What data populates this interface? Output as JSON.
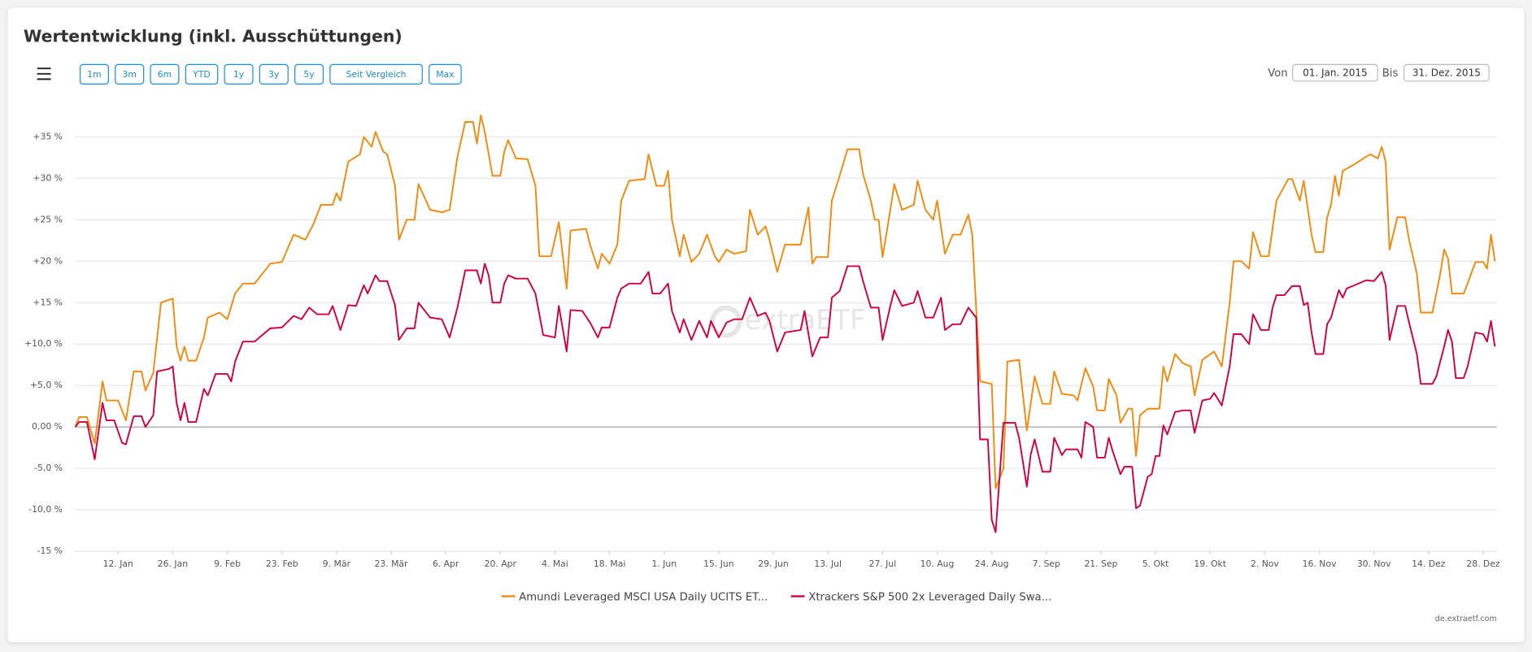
{
  "chart_data": {
    "type": "line",
    "title": "Wertentwicklung (inkl. Ausschüttungen)",
    "range_buttons": [
      "1m",
      "3m",
      "6m",
      "YTD",
      "1y",
      "3y",
      "5y",
      "Seit Vergleich",
      "Max"
    ],
    "date_range": {
      "from_label": "Von",
      "from": "01. Jan. 2015",
      "to_label": "Bis",
      "to": "31. Dez. 2015"
    },
    "watermark": "extraETF",
    "credits": "de.extraetf.com",
    "xlim": [
      1,
      365
    ],
    "xticks": [
      {
        "value": 12,
        "label": "12. Jan"
      },
      {
        "value": 26,
        "label": "26. Jan"
      },
      {
        "value": 40,
        "label": "9. Feb"
      },
      {
        "value": 54,
        "label": "23. Feb"
      },
      {
        "value": 68,
        "label": "9. Mär"
      },
      {
        "value": 82,
        "label": "23. Mär"
      },
      {
        "value": 96,
        "label": "6. Apr"
      },
      {
        "value": 110,
        "label": "20. Apr"
      },
      {
        "value": 124,
        "label": "4. Mai"
      },
      {
        "value": 138,
        "label": "18. Mai"
      },
      {
        "value": 152,
        "label": "1. Jun"
      },
      {
        "value": 166,
        "label": "15. Jun"
      },
      {
        "value": 180,
        "label": "29. Jun"
      },
      {
        "value": 194,
        "label": "13. Jul"
      },
      {
        "value": 208,
        "label": "27. Jul"
      },
      {
        "value": 222,
        "label": "10. Aug"
      },
      {
        "value": 236,
        "label": "24. Aug"
      },
      {
        "value": 250,
        "label": "7. Sep"
      },
      {
        "value": 264,
        "label": "21. Sep"
      },
      {
        "value": 278,
        "label": "5. Okt"
      },
      {
        "value": 292,
        "label": "19. Okt"
      },
      {
        "value": 306,
        "label": "2. Nov"
      },
      {
        "value": 320,
        "label": "16. Nov"
      },
      {
        "value": 334,
        "label": "30. Nov"
      },
      {
        "value": 348,
        "label": "14. Dez"
      },
      {
        "value": 362,
        "label": "28. Dez"
      }
    ],
    "ylim": [
      -15,
      40
    ],
    "yticks": [
      {
        "value": 35,
        "label": "+35 %"
      },
      {
        "value": 30,
        "label": "+30 %"
      },
      {
        "value": 25,
        "label": "+25 %"
      },
      {
        "value": 20,
        "label": "+20 %"
      },
      {
        "value": 15,
        "label": "+15 %"
      },
      {
        "value": 10,
        "label": "+10,0 %"
      },
      {
        "value": 5,
        "label": "+5,0 %"
      },
      {
        "value": 0,
        "label": "0,00 %"
      },
      {
        "value": -5,
        "label": "-5,0 %"
      },
      {
        "value": -10,
        "label": "-10,0 %"
      },
      {
        "value": -15,
        "label": "-15 %"
      }
    ],
    "grid": true,
    "legend": "bottom",
    "series": [
      {
        "name": "Amundi Leveraged MSCI USA Daily UCITS ET...",
        "color": "#f28a0e",
        "x": [
          1,
          2,
          4,
          6,
          8,
          9,
          12,
          13,
          14,
          16,
          18,
          19,
          21,
          23,
          26,
          27,
          28,
          29,
          30,
          32,
          34,
          35,
          38,
          40,
          42,
          44,
          47,
          49,
          51,
          54,
          57,
          60,
          62,
          64,
          67,
          68,
          69,
          71,
          74,
          75,
          77,
          78,
          80,
          81,
          83,
          84,
          86,
          88,
          89,
          92,
          95,
          97,
          99,
          101,
          103,
          104,
          105,
          106,
          108,
          110,
          111,
          112,
          114,
          117,
          119,
          120,
          123,
          125,
          127,
          128,
          132,
          133,
          135,
          136,
          138,
          140,
          141,
          143,
          147,
          148,
          150,
          152,
          153,
          154,
          156,
          157,
          159,
          161,
          163,
          165,
          166,
          168,
          170,
          173,
          174,
          176,
          178,
          179,
          181,
          183,
          187,
          189,
          190,
          191,
          194,
          195,
          197,
          199,
          202,
          203,
          205,
          206,
          207,
          208,
          210,
          211,
          213,
          216,
          217,
          219,
          221,
          222,
          224,
          226,
          228,
          230,
          231,
          233,
          236,
          237,
          239,
          240,
          243,
          245,
          247,
          249,
          251,
          252,
          254,
          257,
          258,
          260,
          262,
          263,
          265,
          266,
          268,
          269,
          271,
          272,
          273,
          274,
          276,
          279,
          280,
          281,
          283,
          285,
          287,
          288,
          290,
          293,
          295,
          297,
          298,
          300,
          302,
          303,
          305,
          307,
          309,
          312,
          313,
          315,
          316,
          318,
          319,
          321,
          322,
          323,
          324,
          325,
          326,
          329,
          333,
          335,
          336,
          337,
          338,
          340,
          342,
          343,
          345,
          346,
          349,
          351,
          352,
          353,
          354,
          357,
          358,
          360,
          362,
          363,
          364,
          365
        ],
        "values": [
          0,
          1.2,
          1.2,
          -2,
          5.5,
          3.2,
          3.2,
          2,
          0.8,
          6.7,
          6.7,
          4.4,
          6.5,
          15,
          15.5,
          9.7,
          8,
          9.7,
          8,
          8,
          10.8,
          13.2,
          13.8,
          13,
          16.1,
          17.3,
          17.3,
          18.5,
          19.7,
          19.9,
          23.2,
          22.6,
          24.4,
          26.8,
          26.8,
          28.2,
          27.3,
          32,
          32.9,
          35,
          33.8,
          35.6,
          33.2,
          32.9,
          29.1,
          22.6,
          25,
          25,
          29.3,
          26.2,
          25.9,
          26.2,
          32.6,
          36.8,
          36.8,
          34.2,
          37.6,
          35.6,
          30.3,
          30.3,
          33.2,
          34.6,
          32.4,
          32.3,
          29.1,
          20.6,
          20.6,
          24.7,
          16.7,
          23.7,
          23.9,
          22,
          19.1,
          20.9,
          19.7,
          22,
          27.3,
          29.7,
          29.9,
          32.9,
          29.1,
          29.1,
          30.9,
          25,
          20.6,
          23.2,
          19.9,
          20.9,
          23.2,
          20.6,
          19.9,
          21.4,
          20.9,
          21.2,
          26.2,
          23.2,
          24.2,
          22.6,
          18.7,
          22,
          22,
          26.5,
          19.7,
          20.5,
          20.5,
          27.3,
          30.3,
          33.5,
          33.5,
          30.5,
          27.3,
          25,
          25,
          20.5,
          26.2,
          29.3,
          26.2,
          26.8,
          29.7,
          26.2,
          25,
          27.3,
          20.9,
          23.2,
          23.2,
          25.6,
          23.2,
          5.5,
          5.2,
          -7.4,
          -5,
          7.9,
          8.1,
          -0.4,
          6.1,
          2.8,
          2.8,
          6.7,
          4,
          3.8,
          3.2,
          7.1,
          4.9,
          2,
          2,
          5.8,
          3.8,
          0.5,
          2.2,
          2.2,
          -3.5,
          1.4,
          2.2,
          2.2,
          7.3,
          5.5,
          8.8,
          7.7,
          7.3,
          3.8,
          8.1,
          9.1,
          7.3,
          15,
          20,
          20,
          19.1,
          23.5,
          20.6,
          20.6,
          27.3,
          29.9,
          29.9,
          27.3,
          29.7,
          23.2,
          21.1,
          21.1,
          25.3,
          26.8,
          30.3,
          27.9,
          30.9,
          31.7,
          32.9,
          32.4,
          33.8,
          32,
          21.4,
          25.3,
          25.3,
          22.6,
          18.5,
          13.8,
          13.8,
          18.5,
          21.4,
          20.3,
          16.1,
          16.1,
          17.3,
          19.9,
          19.9,
          19.1,
          23.2,
          20
        ]
      },
      {
        "name": "Xtrackers S&P 500 2x Leveraged Daily Swa...",
        "color": "#d3003f",
        "x": [
          1,
          2,
          4,
          6,
          8,
          9,
          11,
          13,
          14,
          16,
          18,
          19,
          21,
          22,
          25,
          26,
          27,
          28,
          29,
          30,
          32,
          34,
          35,
          37,
          40,
          41,
          42,
          44,
          47,
          49,
          51,
          54,
          57,
          59,
          61,
          63,
          66,
          67,
          69,
          71,
          73,
          75,
          76,
          78,
          79,
          81,
          83,
          84,
          86,
          88,
          89,
          92,
          95,
          97,
          99,
          101,
          104,
          105,
          106,
          107,
          108,
          110,
          111,
          112,
          114,
          117,
          119,
          121,
          124,
          125,
          127,
          128,
          131,
          133,
          135,
          136,
          138,
          140,
          141,
          143,
          146,
          148,
          149,
          151,
          153,
          154,
          156,
          157,
          159,
          161,
          163,
          164,
          166,
          168,
          170,
          172,
          174,
          176,
          178,
          179,
          181,
          183,
          187,
          188,
          190,
          192,
          194,
          195,
          197,
          199,
          202,
          203,
          205,
          207,
          208,
          210,
          211,
          213,
          216,
          217,
          219,
          221,
          223,
          224,
          226,
          228,
          230,
          232,
          233,
          235,
          236,
          237,
          239,
          242,
          243,
          245,
          246,
          247,
          249,
          251,
          252,
          254,
          255,
          258,
          259,
          260,
          262,
          263,
          265,
          266,
          267,
          269,
          270,
          272,
          273,
          274,
          276,
          277,
          278,
          279,
          280,
          281,
          283,
          285,
          287,
          288,
          290,
          292,
          293,
          295,
          297,
          298,
          300,
          302,
          303,
          305,
          307,
          308,
          309,
          311,
          313,
          315,
          316,
          317,
          318,
          319,
          321,
          322,
          323,
          325,
          326,
          327,
          329,
          332,
          334,
          336,
          337,
          338,
          340,
          342,
          343,
          345,
          346,
          349,
          350,
          352,
          353,
          354,
          355,
          357,
          358,
          360,
          362,
          363,
          364,
          365
        ],
        "values": [
          0,
          0.6,
          0.6,
          -3.9,
          2.9,
          0.8,
          0.8,
          -1.9,
          -2.1,
          1.3,
          1.3,
          0,
          1.4,
          6.7,
          7,
          7.3,
          2.9,
          0.8,
          2.9,
          0.6,
          0.6,
          4.6,
          3.8,
          6.4,
          6.4,
          5.5,
          7.9,
          10.3,
          10.3,
          11.1,
          11.9,
          12,
          13.4,
          13,
          14.4,
          13.6,
          13.6,
          14.6,
          11.7,
          14.7,
          14.6,
          17.1,
          16.1,
          18.3,
          17.6,
          17.6,
          14.7,
          10.5,
          11.9,
          11.9,
          15,
          13.2,
          13,
          10.8,
          14.4,
          18.9,
          18.9,
          17.3,
          19.7,
          18.3,
          15,
          15,
          17.3,
          18.3,
          17.9,
          17.9,
          16.1,
          11.1,
          10.8,
          14.6,
          9.1,
          14.1,
          14,
          12.6,
          10.8,
          12,
          12,
          15.6,
          16.7,
          17.3,
          17.3,
          18.7,
          16.1,
          16.1,
          17.3,
          14,
          11.4,
          13,
          10.5,
          12.8,
          10.8,
          12.8,
          10.8,
          12.6,
          13,
          13,
          15.6,
          13.4,
          13.8,
          12.8,
          9.1,
          11.4,
          11.7,
          14,
          8.5,
          10.8,
          10.8,
          15.6,
          16.4,
          19.4,
          19.4,
          17.6,
          14.4,
          14.4,
          10.5,
          14.6,
          16.5,
          14.6,
          15,
          16.4,
          13.2,
          13.2,
          15.6,
          11.7,
          12.4,
          12.4,
          14.4,
          13.2,
          -1.5,
          -1.5,
          -11.2,
          -12.7,
          0.5,
          0.5,
          -1.3,
          -7.2,
          -3.3,
          -1.5,
          -5.4,
          -5.4,
          -1.3,
          -3.4,
          -2.7,
          -2.7,
          -3.7,
          0.6,
          0,
          -3.7,
          -3.7,
          -1.3,
          -2.9,
          -5.7,
          -4.8,
          -4.8,
          -9.8,
          -9.5,
          -6,
          -5.7,
          -3.5,
          -3.5,
          0.2,
          -0.9,
          1.8,
          2,
          2,
          -0.7,
          3.2,
          3.4,
          4.1,
          2.6,
          7.3,
          11.2,
          11.2,
          10,
          13.6,
          11.7,
          11.7,
          14.4,
          15.9,
          15.9,
          17,
          17,
          14.7,
          15,
          11.4,
          8.8,
          8.8,
          12.4,
          13.2,
          16.5,
          15.6,
          16.7,
          17.1,
          17.7,
          17.6,
          18.7,
          17.1,
          10.5,
          14.6,
          14.6,
          12.6,
          8.8,
          5.2,
          5.2,
          6.1,
          9.7,
          11.7,
          10.3,
          5.9,
          5.9,
          7.3,
          11.4,
          11.2,
          10.3,
          12.8,
          9.7
        ]
      }
    ]
  }
}
